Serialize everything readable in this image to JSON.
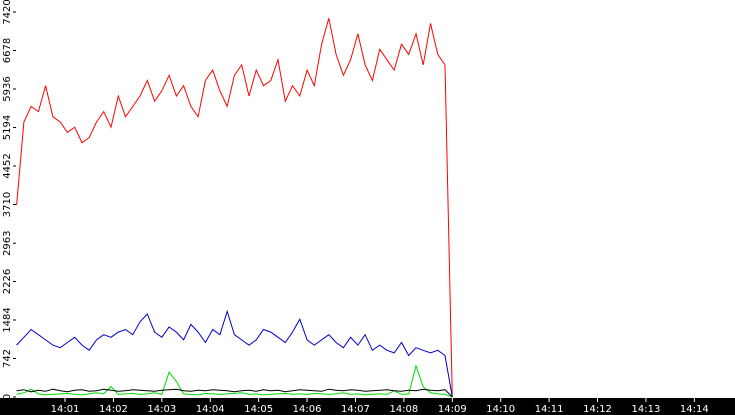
{
  "chart_data": {
    "type": "line",
    "x": [
      0,
      0.15,
      0.3,
      0.45,
      0.6,
      0.75,
      0.9,
      1.05,
      1.2,
      1.35,
      1.5,
      1.65,
      1.8,
      1.95,
      2.1,
      2.25,
      2.4,
      2.55,
      2.7,
      2.85,
      3,
      3.15,
      3.3,
      3.45,
      3.6,
      3.75,
      3.9,
      4.05,
      4.2,
      4.35,
      4.5,
      4.65,
      4.8,
      4.95,
      5.1,
      5.25,
      5.4,
      5.55,
      5.7,
      5.85,
      6,
      6.15,
      6.3,
      6.45,
      6.6,
      6.75,
      6.9,
      7.05,
      7.2,
      7.35,
      7.5,
      7.65,
      7.8,
      7.95,
      8.1,
      8.25,
      8.4,
      8.55,
      8.7,
      8.85,
      9
    ],
    "series": [
      {
        "color": "#ff0000",
        "values": [
          3700,
          5300,
          5600,
          5500,
          6000,
          5400,
          5300,
          5100,
          5200,
          4900,
          5000,
          5300,
          5500,
          5200,
          5800,
          5400,
          5600,
          5800,
          6100,
          5700,
          5900,
          6200,
          5800,
          6000,
          5600,
          5400,
          6100,
          6300,
          5900,
          5600,
          6200,
          6400,
          5800,
          6300,
          6000,
          6100,
          6500,
          5700,
          6000,
          5800,
          6300,
          6000,
          6800,
          7300,
          6600,
          6200,
          6500,
          7000,
          6400,
          6100,
          6700,
          6500,
          6300,
          6800,
          6600,
          7000,
          6400,
          7200,
          6600,
          6400,
          0
        ]
      },
      {
        "color": "#0000cc",
        "values": [
          1000,
          1150,
          1300,
          1200,
          1100,
          1000,
          950,
          1050,
          1150,
          1000,
          900,
          1100,
          1200,
          1150,
          1250,
          1300,
          1200,
          1450,
          1600,
          1250,
          1150,
          1350,
          1250,
          1100,
          1400,
          1250,
          1050,
          1300,
          1200,
          1650,
          1200,
          1100,
          1000,
          1100,
          1300,
          1250,
          1150,
          1050,
          1250,
          1500,
          1100,
          1000,
          1100,
          1200,
          1050,
          950,
          1150,
          1000,
          1200,
          900,
          1000,
          900,
          850,
          1050,
          800,
          950,
          900,
          850,
          900,
          800,
          0
        ]
      },
      {
        "color": "#00dd00",
        "values": [
          50,
          80,
          150,
          60,
          40,
          50,
          60,
          70,
          50,
          40,
          60,
          80,
          60,
          200,
          50,
          60,
          70,
          50,
          60,
          80,
          50,
          480,
          300,
          60,
          50,
          40,
          70,
          60,
          50,
          60,
          70,
          80,
          50,
          60,
          40,
          50,
          60,
          70,
          50,
          60,
          50,
          70,
          60,
          50,
          60,
          80,
          50,
          60,
          40,
          50,
          60,
          50,
          120,
          50,
          60,
          600,
          200,
          80,
          60,
          50,
          0
        ]
      },
      {
        "color": "#000000",
        "values": [
          120,
          140,
          100,
          130,
          110,
          150,
          120,
          100,
          130,
          140,
          110,
          120,
          150,
          130,
          110,
          120,
          140,
          130,
          120,
          110,
          130,
          140,
          150,
          120,
          110,
          130,
          120,
          140,
          130,
          120,
          100,
          120,
          130,
          110,
          140,
          120,
          130,
          100,
          120,
          140,
          130,
          120,
          110,
          150,
          130,
          120,
          140,
          130,
          110,
          120,
          130,
          140,
          120,
          110,
          130,
          120,
          150,
          130,
          120,
          140,
          0
        ]
      }
    ],
    "xlim": [
      0,
      14.84
    ],
    "xticks": [
      {
        "value": 1,
        "label": "14:01"
      },
      {
        "value": 2,
        "label": "14:02"
      },
      {
        "value": 3,
        "label": "14:03"
      },
      {
        "value": 4,
        "label": "14:04"
      },
      {
        "value": 5,
        "label": "14:05"
      },
      {
        "value": 6,
        "label": "14:06"
      },
      {
        "value": 7,
        "label": "14:07"
      },
      {
        "value": 8,
        "label": "14:08"
      },
      {
        "value": 9,
        "label": "14:09"
      },
      {
        "value": 10,
        "label": "14:10"
      },
      {
        "value": 11,
        "label": "14:11"
      },
      {
        "value": 12,
        "label": "14:12"
      },
      {
        "value": 13,
        "label": "14:13"
      },
      {
        "value": 14,
        "label": "14:14"
      }
    ],
    "ylim": [
      0,
      7651
    ],
    "yticks": [
      0,
      742,
      1484,
      2226,
      2963,
      3710,
      4452,
      5194,
      5936,
      6678,
      7420
    ]
  }
}
